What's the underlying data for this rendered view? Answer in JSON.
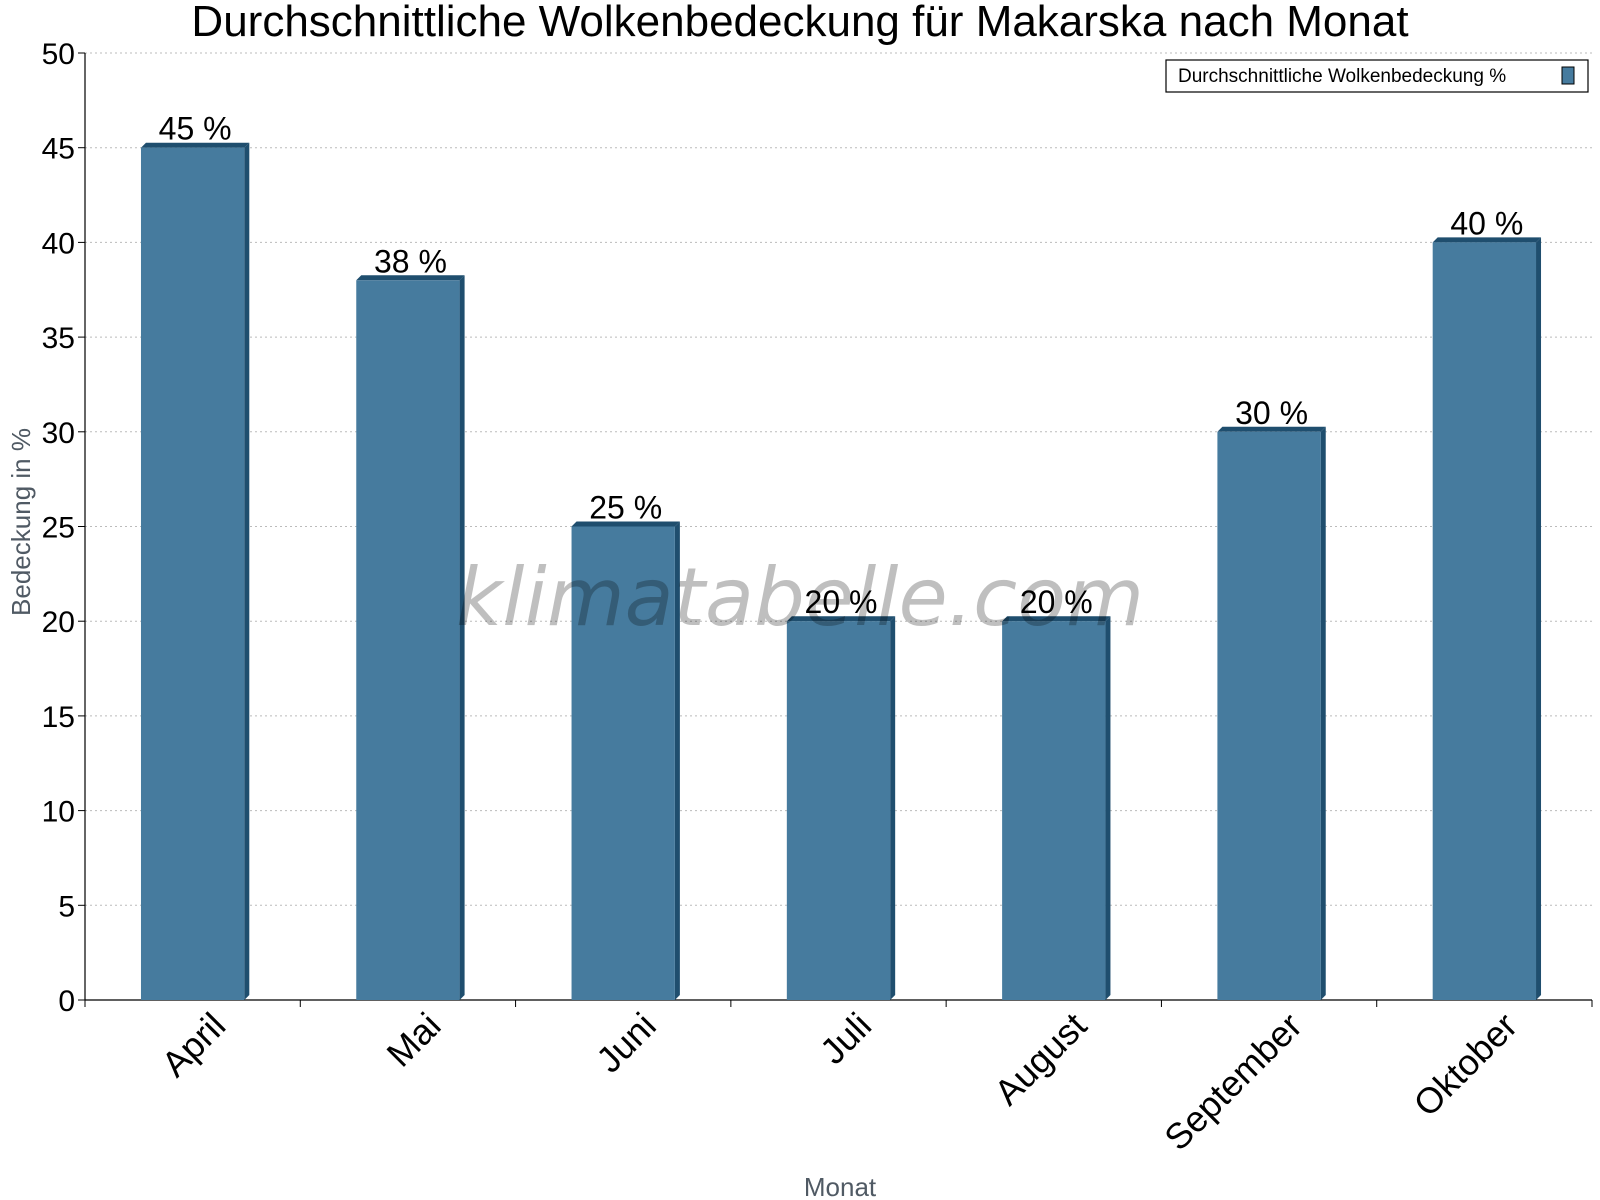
{
  "chart_data": {
    "type": "bar",
    "title": "Durchschnittliche Wolkenbedeckung für Makarska nach Monat",
    "xlabel": "Monat",
    "ylabel": "Bedeckung in %",
    "categories": [
      "April",
      "Mai",
      "Juni",
      "Juli",
      "August",
      "September",
      "Oktober"
    ],
    "series": [
      {
        "name": "Durchschnittliche Wolkenbedeckung %",
        "values": [
          45,
          38,
          25,
          20,
          20,
          30,
          40
        ]
      }
    ],
    "data_labels": [
      "45 %",
      "38 %",
      "25 %",
      "20 %",
      "20 %",
      "30 %",
      "40 %"
    ],
    "ylim": [
      0,
      50
    ],
    "yticks": [
      0,
      5,
      10,
      15,
      20,
      25,
      30,
      35,
      40,
      45,
      50
    ],
    "grid": true,
    "legend_position": "top-right",
    "colors": {
      "bar": "#467b9e",
      "bar_edge": "#1f4e6e"
    },
    "watermark": "klimatabelle.com"
  }
}
